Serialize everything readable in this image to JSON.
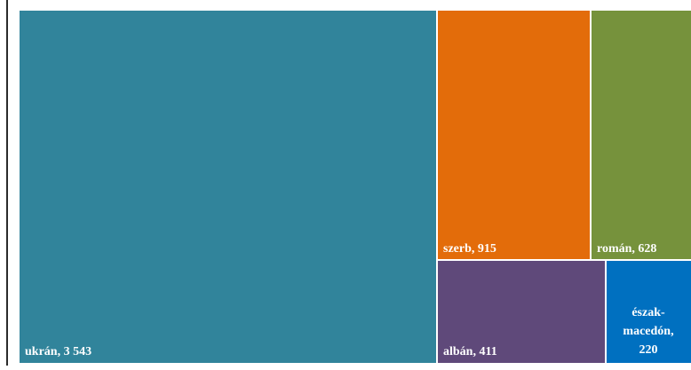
{
  "chart_data": {
    "type": "treemap",
    "items": [
      {
        "name": "ukrán",
        "value": 3543,
        "label": "ukrán, 3 543",
        "color": "#31849B"
      },
      {
        "name": "szerb",
        "value": 915,
        "label": "szerb,  915",
        "color": "#E36C0A"
      },
      {
        "name": "román",
        "value": 628,
        "label": "román,  628",
        "color": "#76923C"
      },
      {
        "name": "albán",
        "value": 411,
        "label": "albán,  411",
        "color": "#5F497A"
      },
      {
        "name": "észak-macedón",
        "value": 220,
        "label_lines": [
          "észak-",
          "macedón,",
          "220"
        ],
        "color": "#0070C0"
      }
    ]
  }
}
